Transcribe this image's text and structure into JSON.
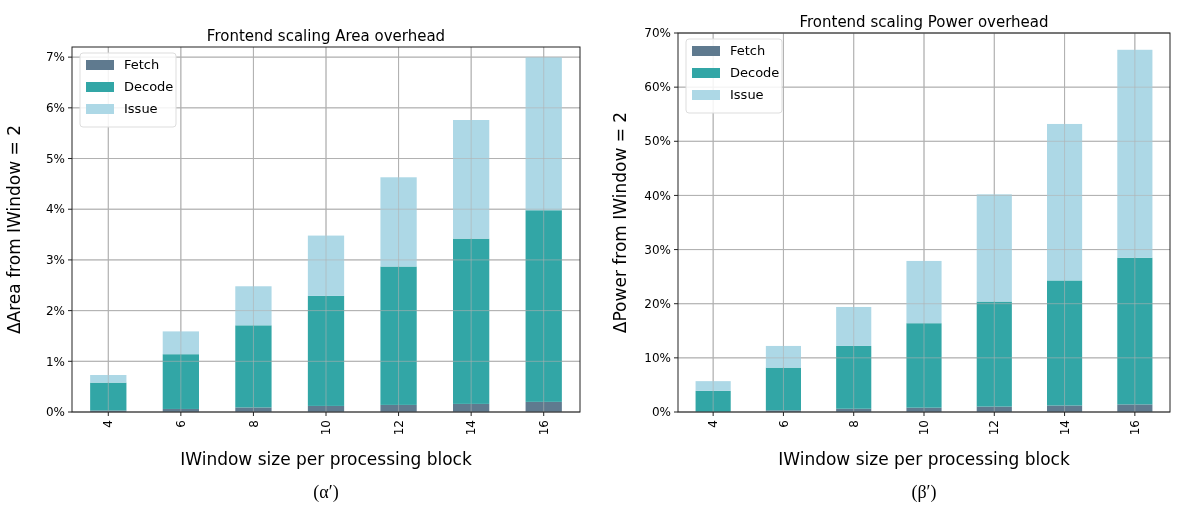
{
  "chart_data": [
    {
      "type": "bar",
      "title": "Frontend scaling Area overhead",
      "xlabel": "IWindow size per processing block",
      "ylabel": "ΔArea from IWindow = 2",
      "categories": [
        "4",
        "6",
        "8",
        "10",
        "12",
        "14",
        "16"
      ],
      "stacked": true,
      "series": [
        {
          "name": "Fetch",
          "color": "#5f7a8f",
          "values": [
            0.03,
            0.06,
            0.09,
            0.12,
            0.14,
            0.16,
            0.2
          ]
        },
        {
          "name": "Decode",
          "color": "#32a6a6",
          "values": [
            0.55,
            1.08,
            1.62,
            2.17,
            2.73,
            3.26,
            3.78
          ]
        },
        {
          "name": "Issue",
          "color": "#add8e6",
          "values": [
            0.15,
            0.45,
            0.77,
            1.19,
            1.76,
            2.34,
            3.02
          ]
        }
      ],
      "ylim": [
        0,
        7.2
      ],
      "yticks": [
        {
          "value": 0,
          "label": "0%"
        },
        {
          "value": 1,
          "label": "1%"
        },
        {
          "value": 2,
          "label": "2%"
        },
        {
          "value": 3,
          "label": "3%"
        },
        {
          "value": 4,
          "label": "4%"
        },
        {
          "value": 5,
          "label": "5%"
        },
        {
          "value": 6,
          "label": "6%"
        },
        {
          "value": 7,
          "label": "7%"
        }
      ],
      "grid": true,
      "legend": "top left",
      "annotations": [
        "(α′)"
      ]
    },
    {
      "type": "bar",
      "title": "Frontend scaling Power overhead",
      "xlabel": "IWindow size per processing block",
      "ylabel": "ΔPower from IWindow = 2",
      "categories": [
        "4",
        "6",
        "8",
        "10",
        "12",
        "14",
        "16"
      ],
      "stacked": true,
      "series": [
        {
          "name": "Fetch",
          "color": "#5f7a8f",
          "values": [
            null,
            0.3,
            0.6,
            0.8,
            1.0,
            1.2,
            1.4
          ]
        },
        {
          "name": "Decode",
          "color": "#32a6a6",
          "values": [
            3.9,
            7.9,
            11.6,
            15.6,
            19.4,
            23.1,
            27.1
          ]
        },
        {
          "name": "Issue",
          "color": "#add8e6",
          "values": [
            1.8,
            4.0,
            7.2,
            11.5,
            19.8,
            28.9,
            38.4
          ]
        }
      ],
      "ylim": [
        0,
        70
      ],
      "yticks": [
        {
          "value": 0,
          "label": "0%"
        },
        {
          "value": 10,
          "label": "10%"
        },
        {
          "value": 20,
          "label": "20%"
        },
        {
          "value": 30,
          "label": "30%"
        },
        {
          "value": 40,
          "label": "40%"
        },
        {
          "value": 50,
          "label": "50%"
        },
        {
          "value": 60,
          "label": "60%"
        },
        {
          "value": 70,
          "label": "70%"
        }
      ],
      "grid": true,
      "legend": "top left",
      "annotations": [
        "(β′)"
      ]
    }
  ]
}
